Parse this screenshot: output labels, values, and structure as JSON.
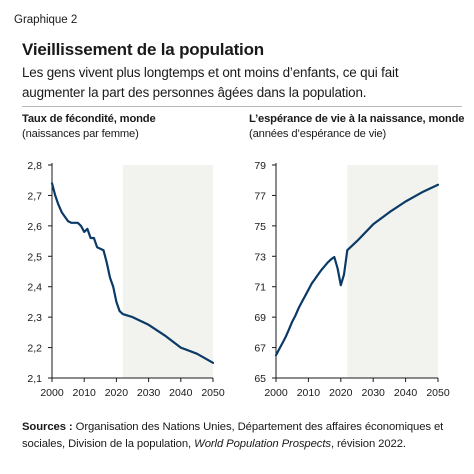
{
  "header": {
    "label": "Graphique 2",
    "title": "Vieillissement de la population",
    "subtitle": "Les gens vivent plus longtemps et ont moins d’enfants, ce qui fait augmenter la part des personnes âgées dans la population."
  },
  "sources": {
    "label": "Sources :",
    "text_part1": " Organisation des Nations Unies, Département des affaires économiques et sociales, Division de la population, ",
    "text_italic": "World Population Prospects",
    "text_part2": ", révision 2022."
  },
  "colors": {
    "line": "#0b3a66",
    "projection_shade": "#f2f2ee",
    "axis": "#1a1a1a"
  },
  "chart_data": [
    {
      "type": "line",
      "title": "Taux de fécondité, monde",
      "subtitle": "(naissances par femme)",
      "xlim": [
        2000,
        2050
      ],
      "ylim": [
        2.1,
        2.8
      ],
      "x_ticks": [
        2000,
        2010,
        2020,
        2030,
        2040,
        2050
      ],
      "y_ticks": [
        "2,1",
        "2,2",
        "2,3",
        "2,4",
        "2,5",
        "2,6",
        "2,7",
        "2,8"
      ],
      "y_tick_values": [
        2.1,
        2.2,
        2.3,
        2.4,
        2.5,
        2.6,
        2.7,
        2.8
      ],
      "shaded_range": [
        2022,
        2050
      ],
      "grid": false,
      "series": [
        {
          "x": [
            2000,
            2001,
            2002,
            2003,
            2004,
            2005,
            2006,
            2007,
            2008,
            2009,
            2010,
            2011,
            2012,
            2013,
            2014,
            2015,
            2016,
            2017,
            2018,
            2019,
            2020,
            2021,
            2022,
            2025,
            2030,
            2035,
            2040,
            2045,
            2050
          ],
          "y": [
            2.74,
            2.7,
            2.67,
            2.645,
            2.63,
            2.615,
            2.61,
            2.61,
            2.61,
            2.6,
            2.58,
            2.59,
            2.56,
            2.56,
            2.53,
            2.525,
            2.52,
            2.48,
            2.43,
            2.4,
            2.35,
            2.32,
            2.31,
            2.3,
            2.275,
            2.24,
            2.2,
            2.18,
            2.15
          ]
        }
      ]
    },
    {
      "type": "line",
      "title": "L’espérance de vie à la naissance, monde",
      "subtitle": "(années d’espérance de vie)",
      "xlim": [
        2000,
        2050
      ],
      "ylim": [
        65,
        79
      ],
      "x_ticks": [
        2000,
        2010,
        2020,
        2030,
        2040,
        2050
      ],
      "y_ticks": [
        "65",
        "67",
        "69",
        "71",
        "73",
        "75",
        "77",
        "79"
      ],
      "y_tick_values": [
        65,
        67,
        69,
        71,
        73,
        75,
        77,
        79
      ],
      "shaded_range": [
        2022,
        2050
      ],
      "grid": false,
      "series": [
        {
          "x": [
            2000,
            2001,
            2002,
            2003,
            2004,
            2005,
            2006,
            2007,
            2008,
            2009,
            2010,
            2011,
            2012,
            2013,
            2014,
            2015,
            2016,
            2017,
            2018,
            2019,
            2020,
            2021,
            2022,
            2023,
            2025,
            2030,
            2035,
            2040,
            2045,
            2050
          ],
          "y": [
            66.5,
            66.9,
            67.3,
            67.7,
            68.2,
            68.7,
            69.1,
            69.6,
            70.0,
            70.4,
            70.8,
            71.2,
            71.5,
            71.8,
            72.1,
            72.35,
            72.6,
            72.8,
            72.95,
            72.2,
            71.1,
            71.8,
            73.4,
            73.6,
            74.0,
            75.1,
            75.9,
            76.6,
            77.2,
            77.7
          ]
        }
      ]
    }
  ]
}
